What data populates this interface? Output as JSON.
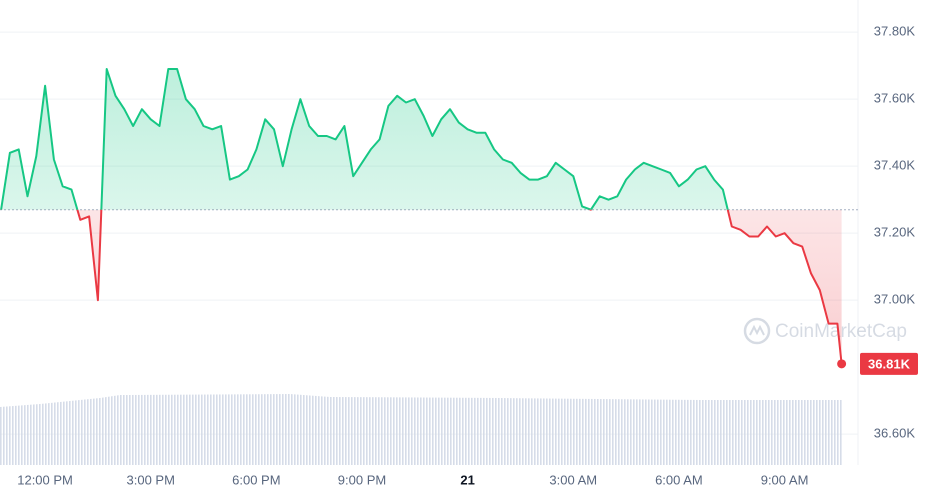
{
  "chart_data": {
    "type": "line",
    "x": [
      -1.25,
      -1,
      -0.75,
      -0.5,
      -0.25,
      0,
      0.25,
      0.5,
      0.75,
      1,
      1.25,
      1.5,
      1.75,
      2,
      2.25,
      2.5,
      2.75,
      3,
      3.25,
      3.5,
      3.75,
      4,
      4.25,
      4.5,
      4.75,
      5,
      5.25,
      5.5,
      5.75,
      6,
      6.25,
      6.5,
      6.75,
      7,
      7.25,
      7.5,
      7.75,
      8,
      8.25,
      8.5,
      8.75,
      9,
      9.25,
      9.5,
      9.75,
      10,
      10.25,
      10.5,
      10.75,
      11,
      11.25,
      11.5,
      11.75,
      12,
      12.25,
      12.5,
      12.75,
      13,
      13.25,
      13.5,
      13.75,
      14,
      14.25,
      14.5,
      14.75,
      15,
      15.25,
      15.5,
      15.75,
      16,
      16.25,
      16.5,
      16.75,
      17,
      17.25,
      17.5,
      17.75,
      18,
      18.25,
      18.5,
      18.75,
      19,
      19.25,
      19.5,
      19.75,
      20,
      20.25,
      20.5,
      20.75,
      21,
      21.25,
      21.5,
      21.75,
      22,
      22.25,
      22.5,
      22.62
    ],
    "series": [
      {
        "values": [
          37.27,
          37.44,
          37.45,
          37.31,
          37.43,
          37.64,
          37.42,
          37.34,
          37.33,
          37.24,
          37.25,
          37.0,
          37.69,
          37.61,
          37.57,
          37.52,
          37.57,
          37.54,
          37.52,
          37.69,
          37.69,
          37.6,
          37.57,
          37.52,
          37.51,
          37.52,
          37.36,
          37.37,
          37.39,
          37.45,
          37.54,
          37.51,
          37.4,
          37.51,
          37.6,
          37.52,
          37.49,
          37.49,
          37.48,
          37.52,
          37.37,
          37.41,
          37.45,
          37.48,
          37.58,
          37.61,
          37.59,
          37.6,
          37.55,
          37.49,
          37.54,
          37.57,
          37.53,
          37.51,
          37.5,
          37.5,
          37.45,
          37.42,
          37.41,
          37.38,
          37.36,
          37.36,
          37.37,
          37.41,
          37.39,
          37.37,
          37.28,
          37.27,
          37.31,
          37.3,
          37.31,
          37.36,
          37.39,
          37.41,
          37.4,
          37.39,
          37.38,
          37.34,
          37.36,
          37.39,
          37.4,
          37.36,
          37.33,
          37.22,
          37.21,
          37.19,
          37.19,
          37.22,
          37.19,
          37.2,
          37.17,
          37.16,
          37.08,
          37.03,
          36.93,
          36.93,
          36.81
        ],
        "value_labels": [
          null,
          null,
          null,
          null,
          null,
          null,
          null,
          null,
          null,
          null,
          null,
          null,
          null,
          null,
          null,
          null,
          null,
          null,
          null,
          null,
          null,
          null,
          null,
          null,
          null,
          null,
          null,
          null,
          null,
          null,
          null,
          null,
          null,
          null,
          null,
          null,
          null,
          null,
          null,
          null,
          null,
          null,
          null,
          null,
          null,
          null,
          null,
          null,
          null,
          null,
          null,
          null,
          null,
          null,
          null,
          null,
          null,
          null,
          null,
          null,
          null,
          null,
          null,
          null,
          null,
          null,
          null,
          null,
          null,
          null,
          null,
          null,
          null,
          null,
          null,
          null,
          null,
          null,
          null,
          null,
          null,
          null,
          null,
          null,
          null,
          null,
          null,
          null,
          null,
          null,
          null,
          null,
          null,
          null,
          null,
          null,
          "36.81K"
        ],
        "up_color": "#16c784",
        "down_color": "#ea3943"
      }
    ],
    "baseline": 37.27,
    "xlim": [
      -1.28,
      23
    ],
    "ylim": [
      36.508,
      37.896
    ],
    "xticks": [
      {
        "value": 0,
        "label": "12:00 PM"
      },
      {
        "value": 3,
        "label": "3:00 PM"
      },
      {
        "value": 6,
        "label": "6:00 PM"
      },
      {
        "value": 9,
        "label": "9:00 PM"
      },
      {
        "value": 12,
        "label": "21"
      },
      {
        "value": 15,
        "label": "3:00 AM"
      },
      {
        "value": 18,
        "label": "6:00 AM"
      },
      {
        "value": 21,
        "label": "9:00 AM"
      }
    ],
    "yticks": [
      {
        "value": 36.6,
        "label": "36.60K"
      },
      {
        "value": 37.0,
        "label": "37.00K"
      },
      {
        "value": 37.2,
        "label": "37.20K"
      },
      {
        "value": 37.4,
        "label": "37.40K"
      },
      {
        "value": 37.6,
        "label": "37.60K"
      },
      {
        "value": 37.8,
        "label": "37.80K"
      }
    ],
    "grid": true,
    "watermark": "CoinMarketCap"
  }
}
